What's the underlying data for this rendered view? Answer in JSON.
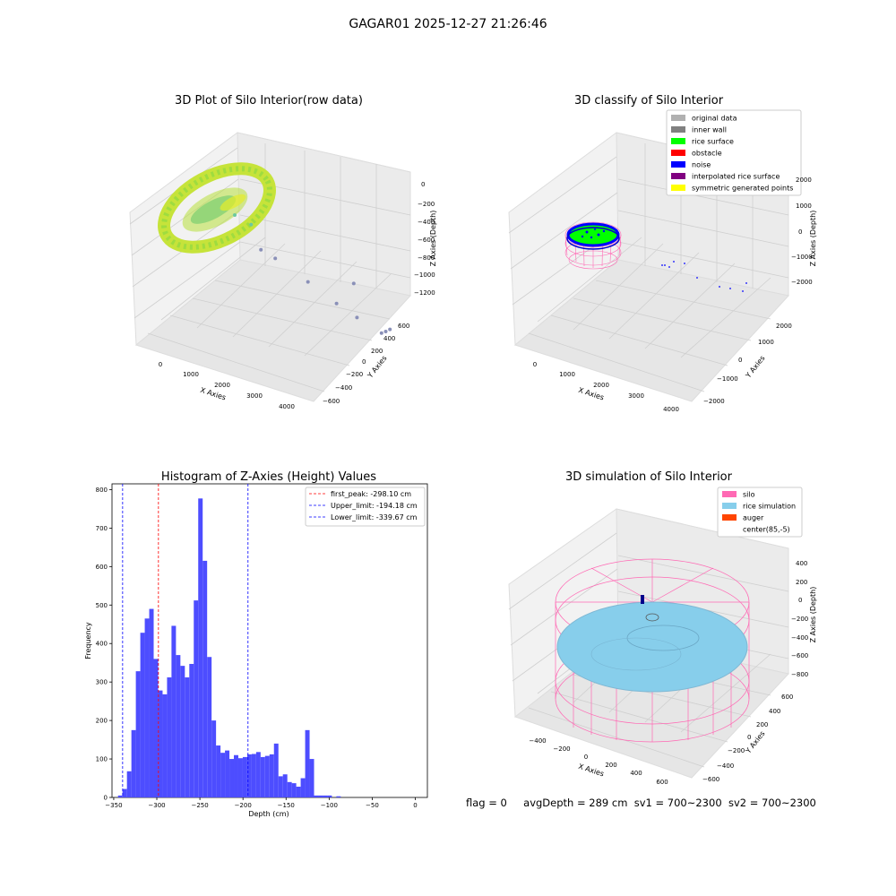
{
  "figure_title": "GAGAR01 2025-12-27 21:26:46",
  "footer": {
    "flag": "flag = 0",
    "avg": "avgDepth = 289 cm",
    "sv1": "sv1 = 700~2300",
    "sv2": "sv2 = 700~2300"
  },
  "chart_data": [
    {
      "type": "scatter",
      "projection": "3d",
      "title": "3D Plot of Silo Interior(row data)",
      "xlabel": "X Axies",
      "ylabel": "Y Axies",
      "zlabel": "Z Axies (Depth)",
      "x_ticks": [
        "0",
        "1000",
        "2000",
        "3000",
        "4000"
      ],
      "y_ticks": [
        "600",
        "400",
        "200",
        "0",
        "−200",
        "−400",
        "−600"
      ],
      "z_ticks": [
        "0",
        "−200",
        "−400",
        "−600",
        "−800",
        "−1000",
        "−1200"
      ],
      "description_colormap": "green-yellow",
      "outlier_points": [
        {
          "x": 1500,
          "y": 500,
          "z": -650
        },
        {
          "x": 1800,
          "y": 450,
          "z": -660
        },
        {
          "x": 1450,
          "y": 150,
          "z": -880
        },
        {
          "x": 1700,
          "y": 100,
          "z": -890
        },
        {
          "x": 2200,
          "y": -50,
          "z": -1000
        },
        {
          "x": 2600,
          "y": -200,
          "z": -1100
        },
        {
          "x": 2900,
          "y": -300,
          "z": -1110
        },
        {
          "x": 3300,
          "y": -400,
          "z": -1120
        },
        {
          "x": 3500,
          "y": -350,
          "z": -1100
        },
        {
          "x": 3700,
          "y": -300,
          "z": -1050
        },
        {
          "x": 3800,
          "y": 200,
          "z": -900
        }
      ]
    },
    {
      "type": "scatter",
      "projection": "3d",
      "title": "3D classify of Silo Interior",
      "xlabel": "X Axies",
      "ylabel": "Y Axies",
      "zlabel": "Z Axies (Depth)",
      "x_ticks": [
        "0",
        "1000",
        "2000",
        "3000",
        "4000"
      ],
      "y_ticks": [
        "2000",
        "1000",
        "0",
        "−1000",
        "−2000"
      ],
      "z_ticks": [
        "2000",
        "1000",
        "0",
        "−1000",
        "−2000"
      ],
      "legend": [
        {
          "label": "original data",
          "color": "#b0b0b0"
        },
        {
          "label": "inner wall",
          "color": "#808080"
        },
        {
          "label": "rice surface",
          "color": "#00ff00"
        },
        {
          "label": "obstacle",
          "color": "#ff0000"
        },
        {
          "label": "noise",
          "color": "#0000ff"
        },
        {
          "label": "interpolated rice surface",
          "color": "#800080"
        },
        {
          "label": "symmetric generated points",
          "color": "#ffff00"
        }
      ],
      "legend_loc": "upper right"
    },
    {
      "type": "bar",
      "subtype": "histogram",
      "title": "Histogram of Z-Axies (Height) Values",
      "xlabel": "Depth (cm)",
      "ylabel": "Frequency",
      "xlim": [
        -352,
        14
      ],
      "ylim": [
        0,
        815
      ],
      "x_ticks": [
        -350,
        -300,
        -250,
        -200,
        -150,
        -100,
        -50,
        0
      ],
      "y_ticks": [
        0,
        100,
        200,
        300,
        400,
        500,
        600,
        700,
        800
      ],
      "bar_color": "#4d4dff",
      "bin_start": -345,
      "bin_width": 5.17,
      "values": [
        5,
        22,
        68,
        175,
        328,
        428,
        465,
        490,
        360,
        278,
        268,
        312,
        446,
        370,
        342,
        312,
        347,
        512,
        777,
        615,
        365,
        200,
        135,
        116,
        122,
        100,
        110,
        102,
        105,
        112,
        113,
        118,
        105,
        108,
        112,
        140,
        55,
        60,
        40,
        37,
        28,
        50,
        175,
        100,
        5,
        5,
        5,
        5,
        0,
        3
      ],
      "vlines": [
        {
          "x": -298.1,
          "color": "#ff0000",
          "label": "first_peak: -298.10 cm"
        },
        {
          "x": -194.18,
          "color": "#0000ff",
          "label": "Upper_limit: -194.18 cm"
        },
        {
          "x": -339.67,
          "color": "#0000ff",
          "label": "Lower_limit: -339.67 cm"
        }
      ],
      "legend_loc": "upper right"
    },
    {
      "type": "scatter",
      "projection": "3d",
      "title": "3D simulation of Silo Interior",
      "xlabel": "X Axies",
      "ylabel": "Y Axies",
      "zlabel": "Z Axies (Depth)",
      "x_ticks": [
        "−400",
        "−200",
        "0",
        "200",
        "400",
        "600"
      ],
      "y_ticks": [
        "600",
        "400",
        "200",
        "0",
        "−200",
        "−400",
        "−600"
      ],
      "z_ticks": [
        "400",
        "200",
        "0",
        "−200",
        "−400",
        "−600",
        "−800"
      ],
      "legend": [
        {
          "label": "silo",
          "color": "#ff69b4"
        },
        {
          "label": "rice simulation",
          "color": "#87ceeb"
        },
        {
          "label": "auger",
          "color": "#ff4500"
        },
        {
          "label": "center(85,-5)",
          "color": ""
        }
      ],
      "legend_loc": "upper right"
    }
  ]
}
